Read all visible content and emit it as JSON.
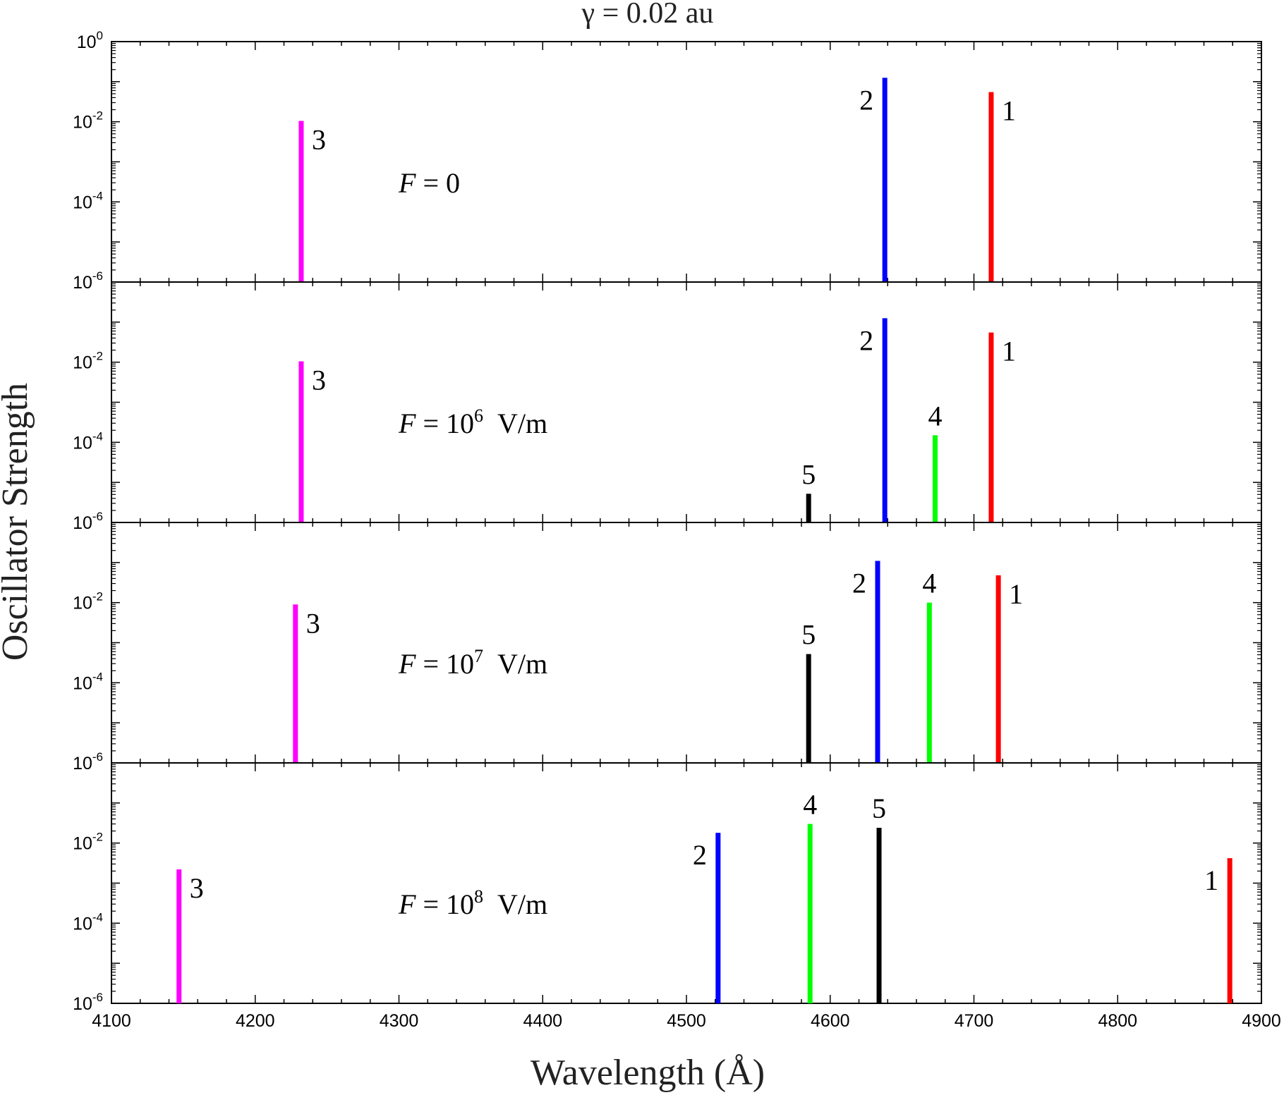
{
  "chart_data": {
    "type": "bar",
    "title": "γ = 0.02 au",
    "xlabel": "Wavelength (Å)",
    "ylabel": "Oscillator Strength",
    "xlim": [
      4100,
      4900
    ],
    "x_ticks": [
      "4100",
      "4200",
      "4300",
      "4400",
      "4500",
      "4600",
      "4700",
      "4800",
      "4900"
    ],
    "y_scale": "log",
    "ylim": [
      1e-06,
      1
    ],
    "y_ticks": [
      {
        "base": "10",
        "exp": "-6"
      },
      {
        "base": "10",
        "exp": "-4"
      },
      {
        "base": "10",
        "exp": "-2"
      },
      {
        "base": "10",
        "exp": "0"
      }
    ],
    "grid": false,
    "legend": "none",
    "panels": [
      {
        "field_label": {
          "prefix": "F = ",
          "base": "0",
          "exp": "",
          "unit": ""
        },
        "bars": [
          {
            "label": "3",
            "x": 4232,
            "y": 0.0105,
            "color": "#ff00ff",
            "label_side": "right"
          },
          {
            "label": "2",
            "x": 4638,
            "y": 0.125,
            "color": "#0000ff",
            "label_side": "left"
          },
          {
            "label": "1",
            "x": 4712,
            "y": 0.055,
            "color": "#ff0000",
            "label_side": "right"
          }
        ]
      },
      {
        "field_label": {
          "prefix": "F = ",
          "base": "10",
          "exp": "6",
          "unit": "V/m"
        },
        "bars": [
          {
            "label": "3",
            "x": 4232,
            "y": 0.0105,
            "color": "#ff00ff",
            "label_side": "right"
          },
          {
            "label": "5",
            "x": 4585,
            "y": 5.2e-06,
            "color": "#000000",
            "label_side": "top"
          },
          {
            "label": "2",
            "x": 4638,
            "y": 0.125,
            "color": "#0000ff",
            "label_side": "left"
          },
          {
            "label": "4",
            "x": 4673,
            "y": 0.00015,
            "color": "#00ff00",
            "label_side": "top"
          },
          {
            "label": "1",
            "x": 4712,
            "y": 0.055,
            "color": "#ff0000",
            "label_side": "right"
          }
        ]
      },
      {
        "field_label": {
          "prefix": "F = ",
          "base": "10",
          "exp": "7",
          "unit": "V/m"
        },
        "bars": [
          {
            "label": "3",
            "x": 4228,
            "y": 0.009,
            "color": "#ff00ff",
            "label_side": "right"
          },
          {
            "label": "5",
            "x": 4585,
            "y": 0.00052,
            "color": "#000000",
            "label_side": "top"
          },
          {
            "label": "2",
            "x": 4633,
            "y": 0.11,
            "color": "#0000ff",
            "label_side": "left"
          },
          {
            "label": "4",
            "x": 4669,
            "y": 0.01,
            "color": "#00ff00",
            "label_side": "top"
          },
          {
            "label": "1",
            "x": 4717,
            "y": 0.048,
            "color": "#ff0000",
            "label_side": "right"
          }
        ]
      },
      {
        "field_label": {
          "prefix": "F = ",
          "base": "10",
          "exp": "8",
          "unit": "V/m"
        },
        "bars": [
          {
            "label": "3",
            "x": 4147,
            "y": 0.0022,
            "color": "#ff00ff",
            "label_side": "right"
          },
          {
            "label": "2",
            "x": 4522,
            "y": 0.018,
            "color": "#0000ff",
            "label_side": "left"
          },
          {
            "label": "4",
            "x": 4586,
            "y": 0.03,
            "color": "#00ff00",
            "label_side": "top"
          },
          {
            "label": "5",
            "x": 4634,
            "y": 0.024,
            "color": "#000000",
            "label_side": "top"
          },
          {
            "label": "1",
            "x": 4878,
            "y": 0.0042,
            "color": "#ff0000",
            "label_side": "left"
          }
        ]
      }
    ]
  }
}
